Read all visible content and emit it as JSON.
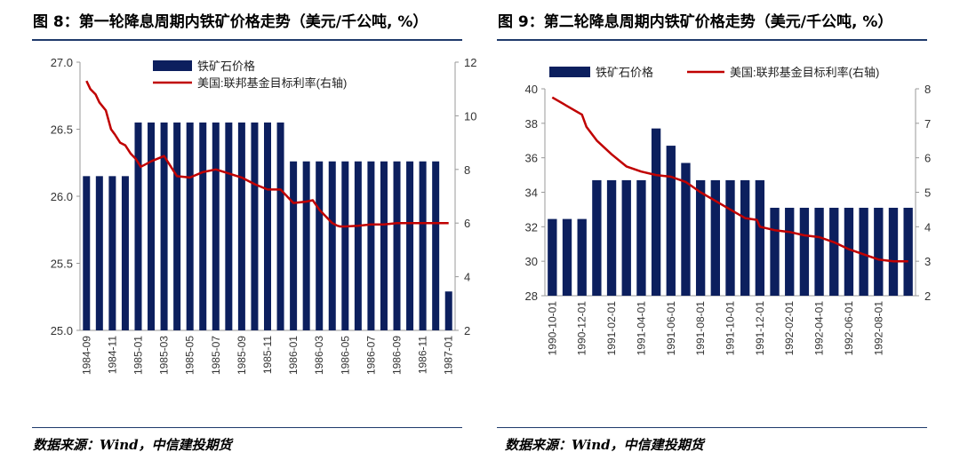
{
  "colors": {
    "bar": "#0c1f5e",
    "line": "#c00000",
    "rule": "#1f3a6b"
  },
  "left": {
    "title": "图 8：第一轮降息周期内铁矿价格走势（美元/千公吨, %）",
    "source": "数据来源：Wind，中信建投期货"
  },
  "right": {
    "title": "图 9：第二轮降息周期内铁矿价格走势（美元/千公吨, %）",
    "source": "数据来源：Wind，中信建投期货"
  },
  "chart_data": [
    {
      "type": "bar",
      "title": "图 8：第一轮降息周期内铁矿价格走势（美元/千公吨, %）",
      "categories": [
        "1984-09",
        "1984-10",
        "1984-11",
        "1984-12",
        "1985-01",
        "1985-02",
        "1985-03",
        "1985-04",
        "1985-05",
        "1985-06",
        "1985-07",
        "1985-08",
        "1985-09",
        "1985-10",
        "1985-11",
        "1985-12",
        "1986-01",
        "1986-02",
        "1986-03",
        "1986-04",
        "1986-05",
        "1986-06",
        "1986-07",
        "1986-08",
        "1986-09",
        "1986-10",
        "1986-11",
        "1986-12",
        "1987-01"
      ],
      "tick_labels": [
        "1984-09",
        "1984-11",
        "1985-01",
        "1985-03",
        "1985-05",
        "1985-07",
        "1985-09",
        "1985-11",
        "1986-01",
        "1986-03",
        "1986-05",
        "1986-07",
        "1986-09",
        "1986-11",
        "1987-01"
      ],
      "series": [
        {
          "name": "铁矿石价格",
          "type": "bar",
          "axis": "left",
          "values": [
            26.15,
            26.15,
            26.15,
            26.15,
            26.55,
            26.55,
            26.55,
            26.55,
            26.55,
            26.55,
            26.55,
            26.55,
            26.55,
            26.55,
            26.55,
            26.55,
            26.26,
            26.26,
            26.26,
            26.26,
            26.26,
            26.26,
            26.26,
            26.26,
            26.26,
            26.26,
            26.26,
            26.26,
            25.29
          ]
        },
        {
          "name": "美国:联邦基金目标利率(右轴)",
          "type": "line",
          "axis": "right",
          "x": [
            0,
            0.3,
            0.7,
            1,
            1.5,
            1.9,
            2.2,
            2.6,
            3,
            3.4,
            3.8,
            4.2,
            4.6,
            5,
            6,
            7,
            8,
            9,
            10,
            11,
            12,
            13,
            14,
            15,
            16,
            17,
            17.5,
            18,
            19,
            19.4,
            19.6,
            20,
            21,
            22,
            23,
            24,
            25,
            26,
            27,
            28
          ],
          "y": [
            11.3,
            11,
            10.8,
            10.5,
            10.2,
            9.5,
            9.3,
            9.0,
            8.9,
            8.6,
            8.4,
            8.1,
            8.2,
            8.3,
            8.5,
            7.75,
            7.7,
            7.9,
            8.0,
            7.85,
            7.7,
            7.45,
            7.25,
            7.25,
            6.75,
            6.8,
            6.85,
            6.5,
            6.0,
            5.9,
            5.875,
            5.875,
            5.9,
            5.95,
            5.95,
            6.0,
            6.0,
            6.0,
            6.0,
            6.0
          ]
        }
      ],
      "ylim_left": [
        25.0,
        27.0
      ],
      "yticks_left": [
        "25.0",
        "25.5",
        "26.0",
        "26.5",
        "27.0"
      ],
      "ylim_right": [
        2,
        12
      ],
      "yticks_right": [
        "2",
        "4",
        "6",
        "8",
        "10",
        "12"
      ],
      "legend": [
        "铁矿石价格",
        "美国:联邦基金目标利率(右轴)"
      ]
    },
    {
      "type": "bar",
      "title": "图 9：第二轮降息周期内铁矿价格走势（美元/千公吨, %）",
      "categories": [
        "1990-10",
        "1990-11",
        "1990-12",
        "1991-01",
        "1991-02",
        "1991-03",
        "1991-04",
        "1991-05",
        "1991-06",
        "1991-07",
        "1991-08",
        "1991-09",
        "1991-10",
        "1991-11",
        "1991-12",
        "1992-01",
        "1992-02",
        "1992-03",
        "1992-04",
        "1992-05",
        "1992-06",
        "1992-07",
        "1992-08",
        "1992-09",
        "1992-10"
      ],
      "tick_labels": [
        "1990-10-01",
        "1990-12-01",
        "1991-02-01",
        "1991-04-01",
        "1991-06-01",
        "1991-08-01",
        "1991-10-01",
        "1991-12-01",
        "1992-02-01",
        "1992-04-01",
        "1992-06-01",
        "1992-08-01"
      ],
      "series": [
        {
          "name": "铁矿石价格",
          "type": "bar",
          "axis": "left",
          "values": [
            32.45,
            32.45,
            32.45,
            34.7,
            34.7,
            34.7,
            34.7,
            37.7,
            36.7,
            35.7,
            34.7,
            34.7,
            34.7,
            34.7,
            34.7,
            33.1,
            33.1,
            33.1,
            33.1,
            33.1,
            33.1,
            33.1,
            33.1,
            33.1,
            33.1
          ]
        },
        {
          "name": "美国:联邦基金目标利率(右轴)",
          "type": "line",
          "axis": "right",
          "x": [
            0,
            1,
            2,
            2.3,
            3,
            4,
            5,
            6,
            7,
            8,
            9,
            10,
            11,
            12,
            13,
            13.8,
            14,
            15,
            16,
            17,
            18,
            19,
            20,
            21,
            22,
            23,
            24
          ],
          "y": [
            7.75,
            7.5,
            7.25,
            6.9,
            6.5,
            6.1,
            5.75,
            5.6,
            5.5,
            5.45,
            5.3,
            5.0,
            4.75,
            4.5,
            4.25,
            4.2,
            4.0,
            3.9,
            3.85,
            3.75,
            3.7,
            3.55,
            3.35,
            3.2,
            3.05,
            3.0,
            3.0
          ]
        }
      ],
      "ylim_left": [
        28,
        40
      ],
      "yticks_left": [
        "28",
        "30",
        "32",
        "34",
        "36",
        "38",
        "40"
      ],
      "ylim_right": [
        2,
        8
      ],
      "yticks_right": [
        "2",
        "3",
        "4",
        "5",
        "6",
        "7",
        "8"
      ],
      "legend": [
        "铁矿石价格",
        "美国:联邦基金目标利率(右轴)"
      ]
    }
  ]
}
